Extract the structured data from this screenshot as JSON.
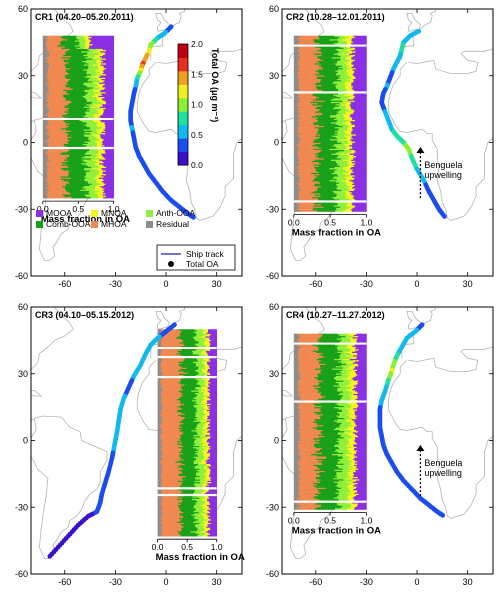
{
  "panels": [
    {
      "id": "CR1",
      "title": "CR1 (04.20–05.20.2011)"
    },
    {
      "id": "CR2",
      "title": "CR2 (10.28–12.01.2011)"
    },
    {
      "id": "CR3",
      "title": "CR3 (04.10–05.15.2012)"
    },
    {
      "id": "CR4",
      "title": "CR4 (10.27–11.27.2012)"
    }
  ],
  "lat_axis": {
    "ticks": [
      "60",
      "30",
      "0",
      "-30",
      "-60"
    ]
  },
  "lon_axis": {
    "ticks": [
      "-60",
      "-30",
      "0",
      "30"
    ]
  },
  "fraction_axis": {
    "label": "Mass fraction in OA",
    "ticks": [
      "0.0",
      "0.5",
      "1.0"
    ]
  },
  "colorbar": {
    "label": "Total OA (μg m⁻³)",
    "ticks": [
      "2.0",
      "1.5",
      "1.0",
      "0.5",
      "0.0"
    ],
    "colors": [
      "#3a10c8",
      "#1a4cf0",
      "#12b8f0",
      "#1ee0a0",
      "#8af030",
      "#f0f020",
      "#f0a020",
      "#e83020",
      "#c00010"
    ]
  },
  "legend": {
    "components": [
      {
        "name": "MOOA",
        "color": "#8c2ee6"
      },
      {
        "name": "MNOA",
        "color": "#f5f51a"
      },
      {
        "name": "Anth-OOA",
        "color": "#8ef03a"
      },
      {
        "name": "Comb-OOA",
        "color": "#18a018"
      },
      {
        "name": "MHOA",
        "color": "#f08850"
      },
      {
        "name": "Residual",
        "color": "#8c8c8c"
      }
    ],
    "ship_track": "Ship track",
    "total_oa": "Total OA"
  },
  "annotations": {
    "benguela": [
      "Benguela",
      "upwelling"
    ]
  }
}
